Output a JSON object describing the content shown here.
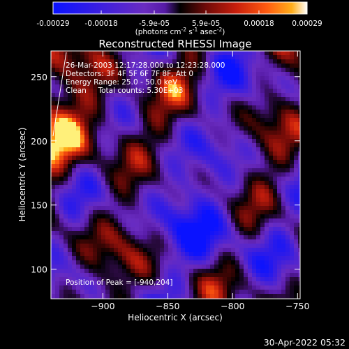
{
  "colorbar": {
    "tick_labels": [
      "-0.00029",
      "-0.00018",
      "-5.9e-05",
      "5.9e-05",
      "0.00018",
      "0.00029"
    ],
    "tick_values": [
      -0.00029,
      -0.00018,
      -5.9e-05,
      5.9e-05,
      0.00018,
      0.00029
    ],
    "range": [
      -0.00029,
      0.00029
    ],
    "unit_parts": [
      "(photons cm",
      "-2",
      " s",
      "-1",
      " asec",
      "-2",
      ")"
    ]
  },
  "chart_data": {
    "type": "heatmap",
    "title": "Reconstructed RHESSI Image",
    "xlabel": "Heliocentric X (arcsec)",
    "ylabel": "Heliocentric Y (arcsec)",
    "xlim": [
      -940,
      -748
    ],
    "ylim": [
      77,
      270
    ],
    "x_ticks": [
      -900,
      -850,
      -800,
      -750
    ],
    "y_ticks": [
      100,
      150,
      200,
      250
    ],
    "annotations": [
      "26-Mar-2003 12:17:28.000 to 12:23:28.000",
      "Detectors: 3F 4F 5F 6F 7F 8F, Att 0",
      "Energy Range: 25.0 - 50.0 keV",
      "Clean     Total counts: 5.30E+03"
    ],
    "peak_label": "Position of Peak = [-940,204]",
    "peak": [
      -940,
      204
    ],
    "colormap": [
      "#0a12ff",
      "#3a1ee0",
      "#6a2cc0",
      "#561aa6",
      "#2a0a40",
      "#000000",
      "#6e0a08",
      "#c81e0c",
      "#ff5a10",
      "#ffae1a",
      "#fff07a",
      "#ffffff"
    ],
    "grid": false
  },
  "timestamp": "30-Apr-2022 05:32"
}
